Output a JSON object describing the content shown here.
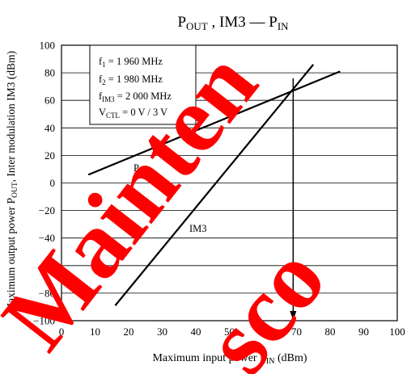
{
  "chart_data": {
    "type": "line",
    "title_main": "P",
    "title_sub1": "OUT",
    "title_mid": " , IM3 — P",
    "title_sub2": "IN",
    "ylabel": "Maximum output power  P",
    "ylabel_sub": "OUT",
    "ylabel_rest": ", Inter modulation IM3  (dBm)",
    "xlabel": "Maximum input power  P",
    "xlabel_sub": "IN",
    "xlabel_rest": "  (dBm)",
    "xlim": [
      0,
      100
    ],
    "ylim": [
      -100,
      100
    ],
    "x_ticks": [
      "0",
      "10",
      "20",
      "30",
      "40",
      "50",
      "60",
      "70",
      "80",
      "90",
      "100"
    ],
    "y_ticks": [
      "100",
      "80",
      "60",
      "40",
      "20",
      "0",
      "−20",
      "−40",
      "−60",
      "−80",
      "−100"
    ],
    "grid": "horizontal",
    "conditions": {
      "line1_var": "f",
      "line1_sub": "1",
      "line1_val": " = 1 960 MHz",
      "line2_var": "f",
      "line2_sub": "2",
      "line2_val": " = 1 980 MHz",
      "line3_var": "f",
      "line3_sub": "IM3",
      "line3_val": " = 2 000 MHz",
      "line4_var": "V",
      "line4_sub": "CTL",
      "line4_val": " = 0 V / 3 V"
    },
    "series": [
      {
        "name": "P",
        "name_sub": "OUT",
        "x": [
          8,
          83
        ],
        "y": [
          6,
          81
        ],
        "color": "#000000"
      },
      {
        "name": "IM3",
        "name_sub": "",
        "x": [
          16,
          75
        ],
        "y": [
          -89,
          86
        ],
        "color": "#000000"
      }
    ],
    "annotation_arrow": {
      "x": 69,
      "y_from": 76,
      "y_to": -100
    },
    "watermark": {
      "text": "Maintenance/Discontinued",
      "color": "#ff0000"
    }
  }
}
